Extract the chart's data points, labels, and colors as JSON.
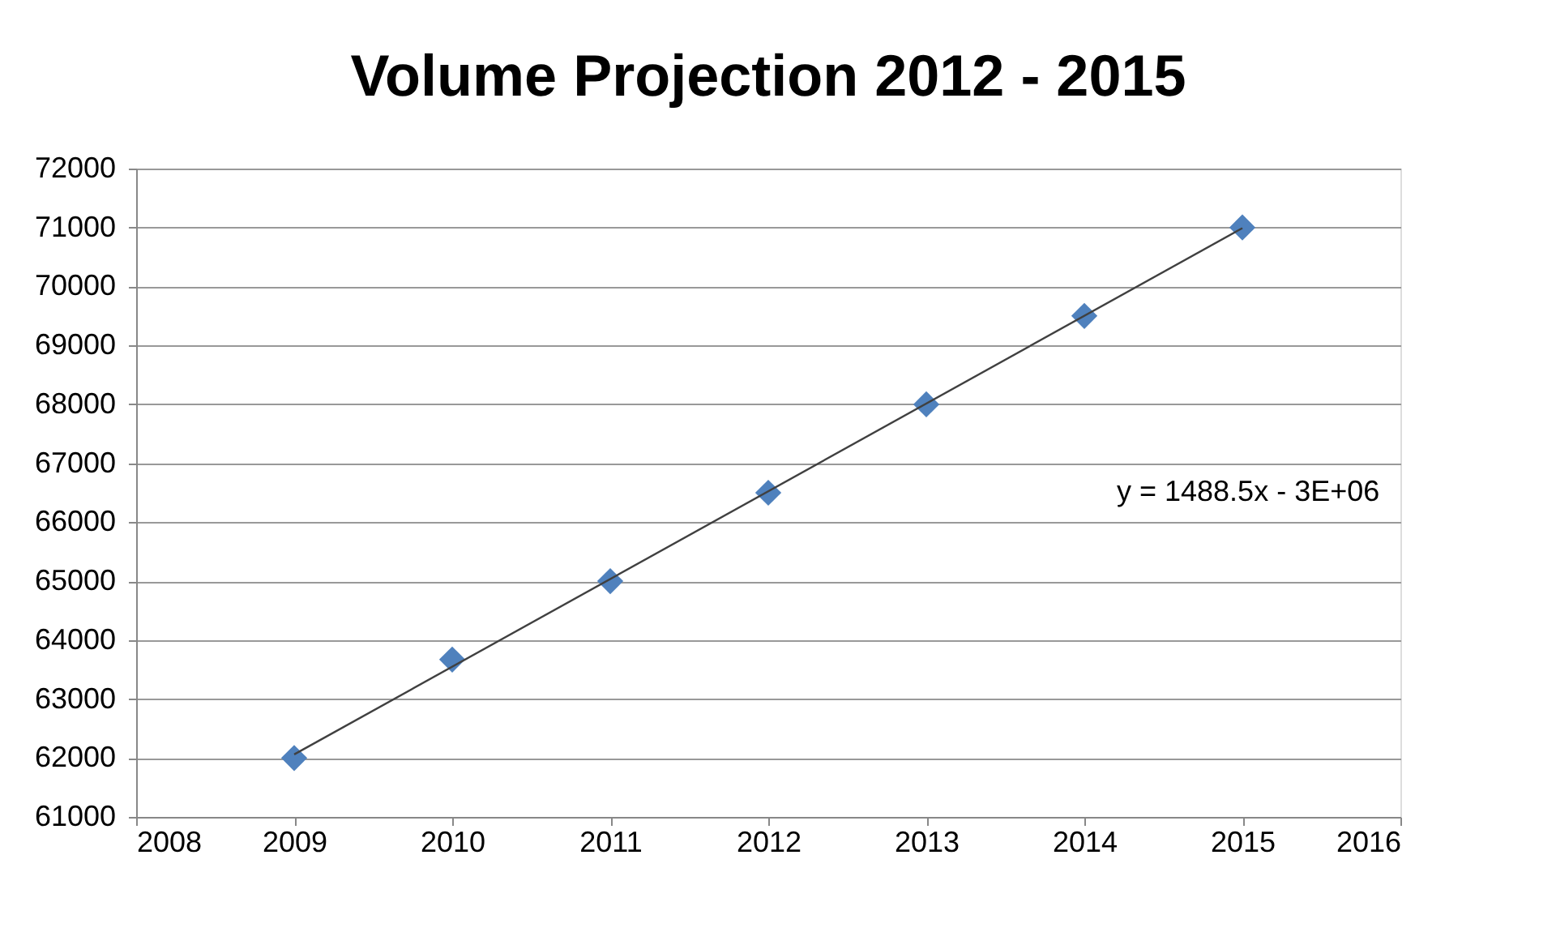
{
  "chart_data": {
    "type": "scatter",
    "title": "Volume Projection 2012 - 2015",
    "x": [
      2009,
      2010,
      2011,
      2012,
      2013,
      2014,
      2015
    ],
    "series": [
      {
        "color": "#4f81bd",
        "marker": "diamond",
        "values": [
          62000,
          63670,
          65000,
          66500,
          68000,
          69500,
          71000
        ]
      },
      {
        "type": "line",
        "color": "#404040",
        "x": [
          2009,
          2015
        ],
        "values": [
          62060,
          70990
        ],
        "line_style": "solid",
        "marker": "none"
      }
    ],
    "annotations": [
      "y = 1488.5x - 3E+06"
    ],
    "xlim": [
      2008,
      2016
    ],
    "xticks": [
      2008,
      2009,
      2010,
      2011,
      2012,
      2013,
      2014,
      2015,
      2016
    ],
    "ylim": [
      61000,
      72000
    ],
    "yticks": [
      61000,
      62000,
      63000,
      64000,
      65000,
      66000,
      67000,
      68000,
      69000,
      70000,
      71000,
      72000
    ],
    "grid": "y"
  }
}
